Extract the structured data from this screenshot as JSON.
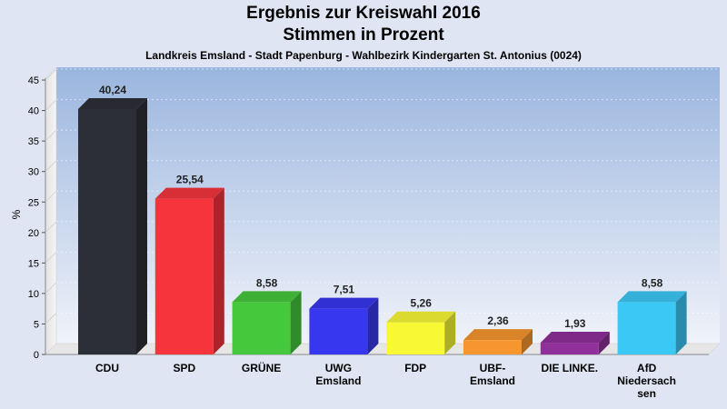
{
  "chart_data": {
    "type": "bar",
    "title": "Ergebnis zur Kreiswahl 2016",
    "title_line2": "Stimmen in Prozent",
    "subtitle": "Landkreis Emsland - Stadt Papenburg - Wahlbezirk Kindergarten St. Antonius (0024)",
    "ylabel": "%",
    "ylim": [
      0,
      45
    ],
    "yticks": [
      0,
      5,
      10,
      15,
      20,
      25,
      30,
      35,
      40,
      45
    ],
    "grid": true,
    "categories": [
      "CDU",
      "SPD",
      "GRÜNE",
      "UWG Emsland",
      "FDP",
      "UBF-Emsland",
      "DIE LINKE.",
      "AfD Niedersachsen"
    ],
    "category_label_lines": [
      [
        "CDU"
      ],
      [
        "SPD"
      ],
      [
        "GRÜNE"
      ],
      [
        "UWG",
        "Emsland"
      ],
      [
        "FDP"
      ],
      [
        "UBF-",
        "Emsland"
      ],
      [
        "DIE LINKE."
      ],
      [
        "AfD",
        "Niedersach",
        "sen"
      ]
    ],
    "values": [
      40.24,
      25.54,
      8.58,
      7.51,
      5.26,
      2.36,
      1.93,
      8.58
    ],
    "value_labels": [
      "40,24",
      "25,54",
      "8,58",
      "7,51",
      "5,26",
      "2,36",
      "1,93",
      "8,58"
    ],
    "colors": [
      "#2d2f38",
      "#f5343c",
      "#45c83c",
      "#3737f0",
      "#f8f835",
      "#f7962e",
      "#90309a",
      "#3cc8f5"
    ]
  }
}
